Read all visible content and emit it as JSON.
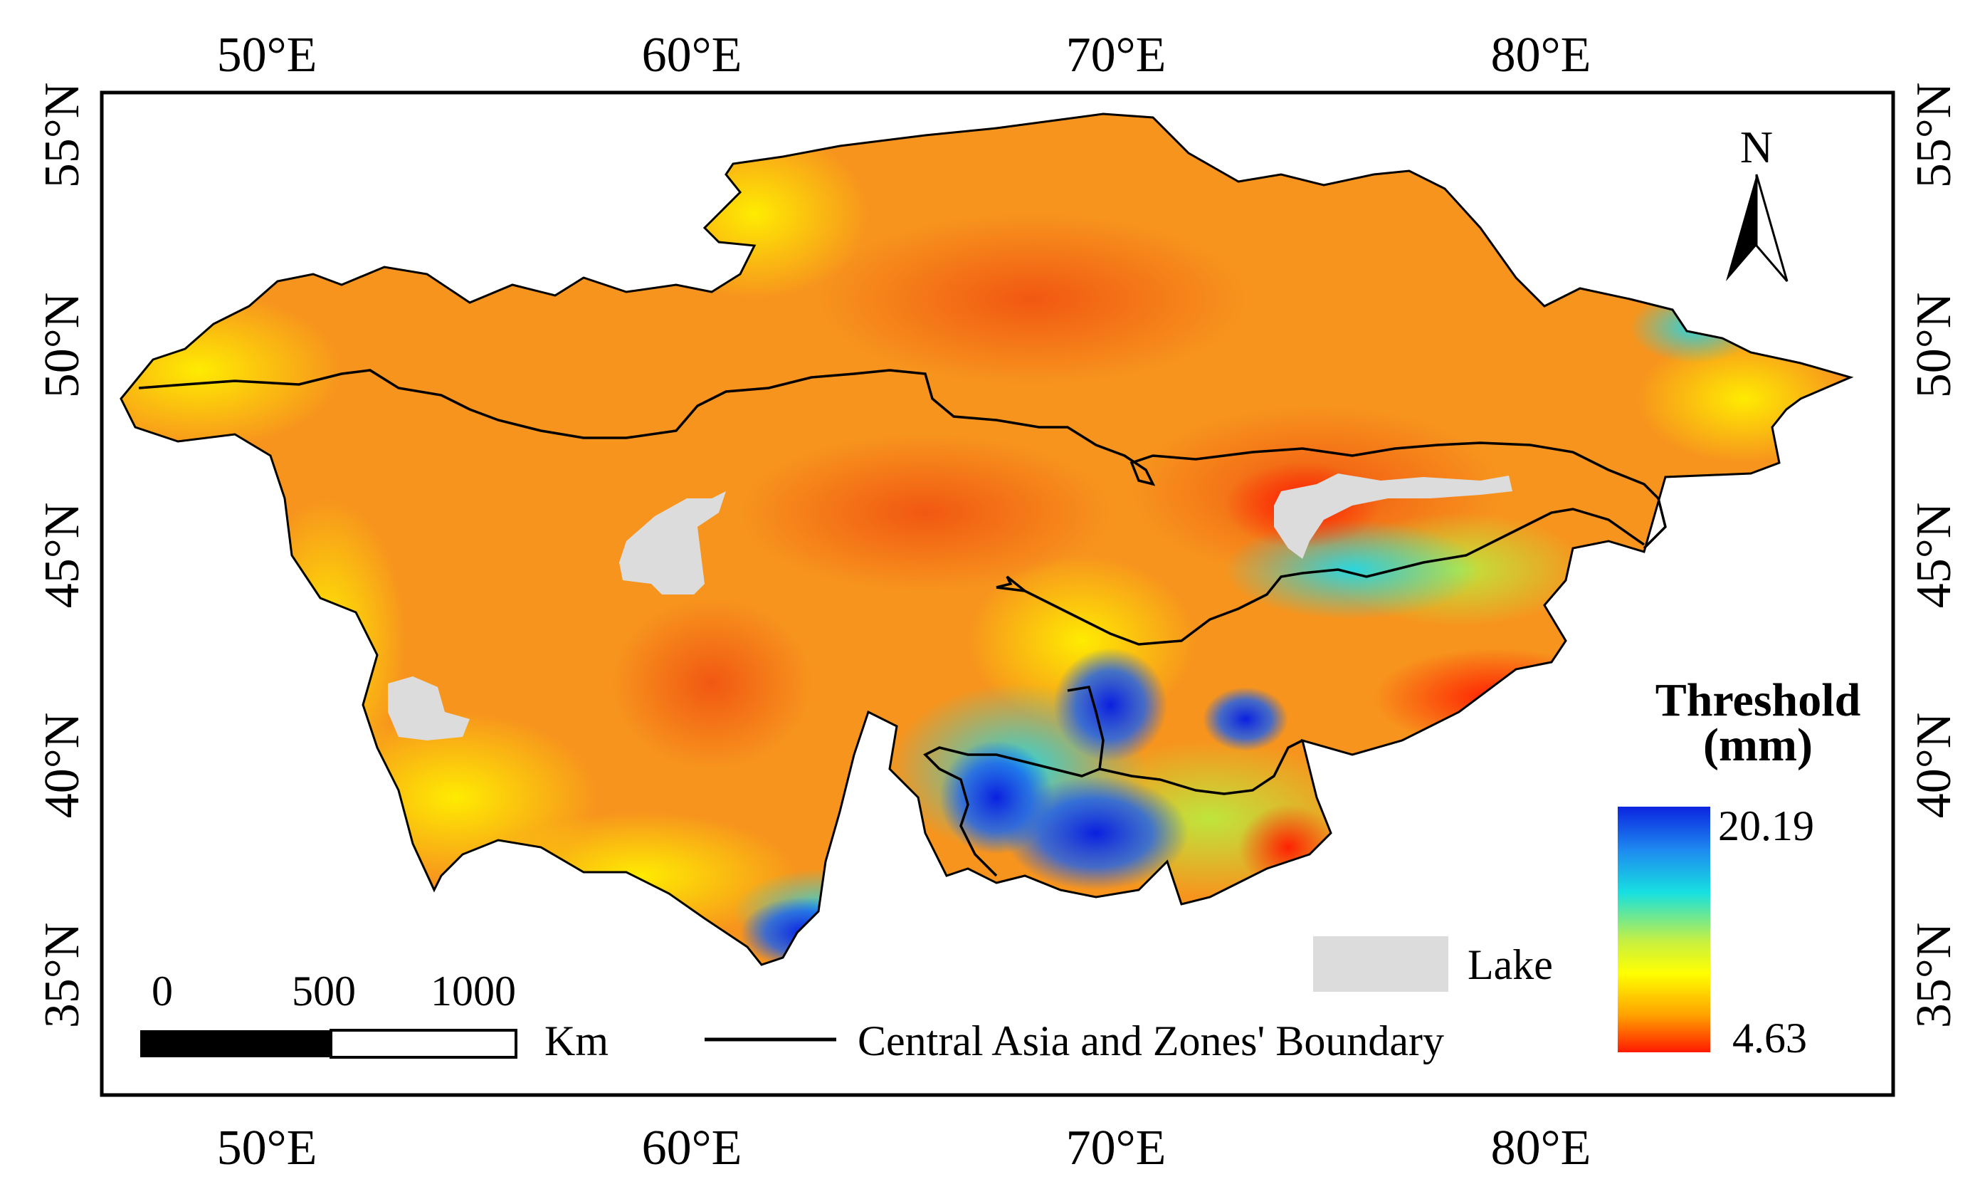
{
  "figure": {
    "top_longitude_labels": [
      "50°E",
      "60°E",
      "70°E",
      "80°E"
    ],
    "bottom_longitude_labels": [
      "50°E",
      "60°E",
      "70°E",
      "80°E"
    ],
    "left_latitude_labels": [
      "55°N",
      "50°N",
      "45°N",
      "40°N",
      "35°N"
    ],
    "right_latitude_labels": [
      "55°N",
      "50°N",
      "45°N",
      "40°N",
      "35°N"
    ]
  },
  "north_arrow": {
    "label": "N",
    "icon": "north-arrow-icon"
  },
  "legend": {
    "title_line1": "Threshold",
    "title_line2": "(mm)",
    "max_value": "20.19",
    "min_value": "4.63",
    "colors": [
      "#0b24e0",
      "#1e8cf0",
      "#17e0e0",
      "#c8f040",
      "#ffff00",
      "#ffa000",
      "#ff1a00"
    ],
    "lake_label": "Lake",
    "lake_color": "#dcdcdc",
    "boundary_label": "Central Asia and Zones' Boundary"
  },
  "scale_bar": {
    "labels": [
      "0",
      "500",
      "1000"
    ],
    "unit": "Km"
  },
  "map": {
    "region_colors": {
      "dominant": "#f7941d",
      "dark_orange": "#f26522",
      "yellow": "#ffee00",
      "cyan": "#25d6e6",
      "blue": "#1a3fe0",
      "red": "#ff2a10"
    }
  }
}
